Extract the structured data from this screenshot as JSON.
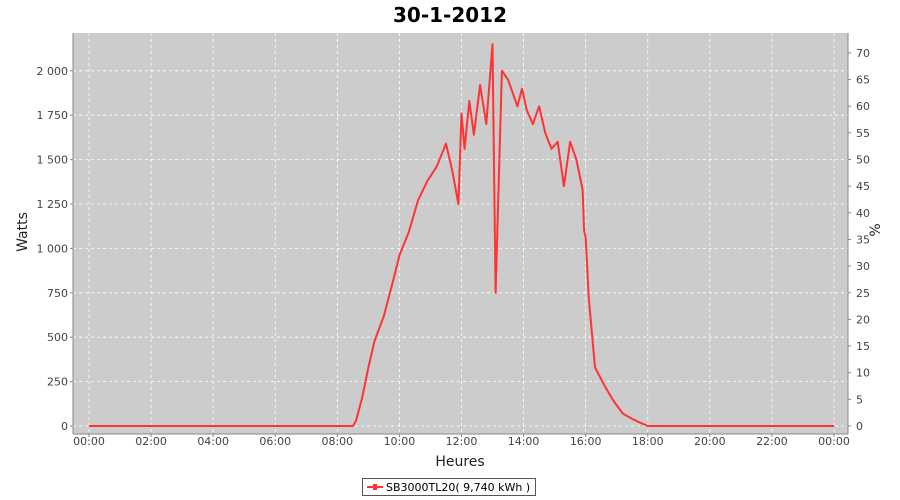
{
  "chart_data": {
    "type": "line",
    "title": "30-1-2012",
    "xlabel": "Heures",
    "ylabel": "Watts",
    "y2label": "%",
    "xlim": [
      0,
      24
    ],
    "ylim": [
      0,
      2200
    ],
    "y2lim": [
      0,
      73
    ],
    "x_ticks": [
      "00:00",
      "02:00",
      "04:00",
      "06:00",
      "08:00",
      "10:00",
      "12:00",
      "14:00",
      "16:00",
      "18:00",
      "20:00",
      "22:00",
      "00:00"
    ],
    "y_ticks": [
      "0",
      "250",
      "500",
      "750",
      "1 000",
      "1 250",
      "1 500",
      "1 750",
      "2 000"
    ],
    "y2_ticks": [
      "0",
      "5",
      "10",
      "15",
      "20",
      "25",
      "30",
      "35",
      "40",
      "45",
      "50",
      "55",
      "60",
      "65",
      "70"
    ],
    "grid": true,
    "legend_position": "bottom-center",
    "colors": {
      "series": "#ff3333",
      "plot_background": "#cccccc",
      "grid": "#ffffff"
    },
    "series": [
      {
        "name": "SB3000TL20( 9,740 kWh )",
        "x": [
          0,
          8.5,
          8.6,
          8.8,
          9.0,
          9.2,
          9.5,
          9.8,
          10.0,
          10.3,
          10.6,
          10.9,
          11.2,
          11.5,
          11.7,
          11.9,
          12.0,
          12.1,
          12.25,
          12.4,
          12.6,
          12.8,
          13.0,
          13.1,
          13.3,
          13.5,
          13.8,
          13.95,
          14.1,
          14.3,
          14.5,
          14.7,
          14.9,
          15.1,
          15.3,
          15.5,
          15.7,
          15.9,
          15.95,
          16.0,
          16.1,
          16.3,
          16.6,
          16.9,
          17.2,
          17.5,
          17.8,
          18.0,
          24.0
        ],
        "y": [
          0,
          0,
          30,
          160,
          330,
          480,
          620,
          820,
          960,
          1090,
          1270,
          1380,
          1460,
          1590,
          1440,
          1250,
          1760,
          1560,
          1830,
          1640,
          1920,
          1700,
          2150,
          750,
          2000,
          1950,
          1800,
          1900,
          1780,
          1700,
          1800,
          1650,
          1560,
          1600,
          1350,
          1600,
          1500,
          1330,
          1100,
          1060,
          720,
          330,
          230,
          140,
          70,
          40,
          15,
          0,
          0
        ]
      }
    ]
  }
}
